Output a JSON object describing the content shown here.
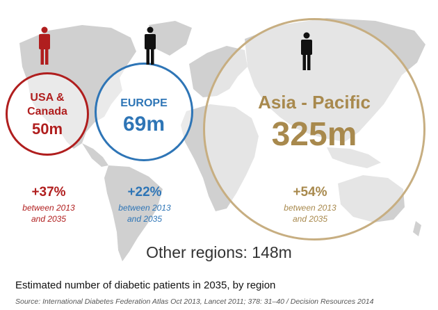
{
  "colors": {
    "usa": "#b01e1e",
    "europe": "#2e75b6",
    "asia": "#a8894d",
    "map": "#cfcfcf",
    "person_usa": "#b01e1e",
    "person_other": "#111111"
  },
  "icons": [
    "person-icon"
  ],
  "regions": {
    "usa": {
      "name_line1": "USA &",
      "name_line2": "Canada",
      "value": "50m",
      "growth": "+37%",
      "period_line1": "between 2013",
      "period_line2": "and 2035"
    },
    "europe": {
      "name": "EUROPE",
      "value": "69m",
      "growth": "+22%",
      "period_line1": "between 2013",
      "period_line2": "and 2035"
    },
    "asia": {
      "name": "Asia - Pacific",
      "value": "325m",
      "growth": "+54%",
      "period_line1": "between 2013",
      "period_line2": "and 2035"
    }
  },
  "other_regions": "Other regions: 148m",
  "caption": "Estimated number of diabetic patients in 2035, by region",
  "source": "Source: International Diabetes Federation Atlas Oct 2013, Lancet 2011; 378: 31–40 / Decision Resources 2014"
}
